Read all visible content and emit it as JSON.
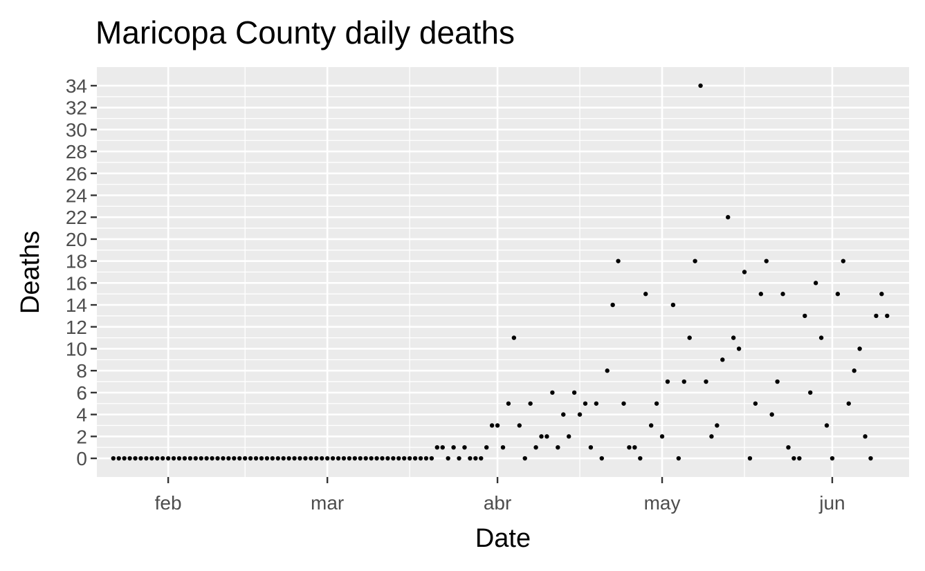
{
  "chart_data": {
    "type": "scatter",
    "title": "Maricopa County daily deaths",
    "xlabel": "Date",
    "ylabel": "Deaths",
    "x_start": "2020-01-22",
    "x_end": "2020-06-12",
    "xlim": [
      "2020-01-19",
      "2020-06-15"
    ],
    "ylim": [
      -1.7,
      35.7
    ],
    "x_ticks": [
      {
        "date": "2020-02-01",
        "label": "feb"
      },
      {
        "date": "2020-03-01",
        "label": "mar"
      },
      {
        "date": "2020-04-01",
        "label": "abr"
      },
      {
        "date": "2020-05-01",
        "label": "may"
      },
      {
        "date": "2020-06-01",
        "label": "jun"
      }
    ],
    "x_minor_ticks": [
      "2020-01-16",
      "2020-02-15",
      "2020-03-16",
      "2020-04-16",
      "2020-05-16",
      "2020-06-16"
    ],
    "y_ticks": [
      0,
      2,
      4,
      6,
      8,
      10,
      12,
      14,
      16,
      18,
      20,
      22,
      24,
      26,
      28,
      30,
      32,
      34
    ],
    "y_minor_ticks": [
      1,
      3,
      5,
      7,
      9,
      11,
      13,
      15,
      17,
      19,
      21,
      23,
      25,
      27,
      29,
      31,
      33
    ],
    "grid": true,
    "colors": {
      "panel": "#ebebeb",
      "grid": "#ffffff",
      "point": "#000000",
      "tick": "#333333"
    },
    "values": [
      0,
      0,
      0,
      0,
      0,
      0,
      0,
      0,
      0,
      0,
      0,
      0,
      0,
      0,
      0,
      0,
      0,
      0,
      0,
      0,
      0,
      0,
      0,
      0,
      0,
      0,
      0,
      0,
      0,
      0,
      0,
      0,
      0,
      0,
      0,
      0,
      0,
      0,
      0,
      0,
      0,
      0,
      0,
      0,
      0,
      0,
      0,
      0,
      0,
      0,
      0,
      0,
      0,
      0,
      0,
      0,
      0,
      0,
      0,
      1,
      1,
      0,
      1,
      0,
      1,
      0,
      0,
      0,
      1,
      3,
      3,
      1,
      5,
      11,
      3,
      0,
      5,
      1,
      2,
      2,
      6,
      1,
      4,
      2,
      6,
      4,
      5,
      1,
      5,
      0,
      8,
      14,
      18,
      5,
      1,
      1,
      0,
      15,
      3,
      5,
      2,
      7,
      14,
      0,
      7,
      11,
      18,
      34,
      7,
      2,
      3,
      9,
      22,
      11,
      10,
      17,
      0,
      5,
      15,
      18,
      4,
      7,
      15,
      1,
      0,
      0,
      13,
      6,
      16,
      11,
      3,
      0,
      15,
      18,
      5,
      8,
      10,
      2,
      0,
      13,
      15,
      13
    ]
  }
}
